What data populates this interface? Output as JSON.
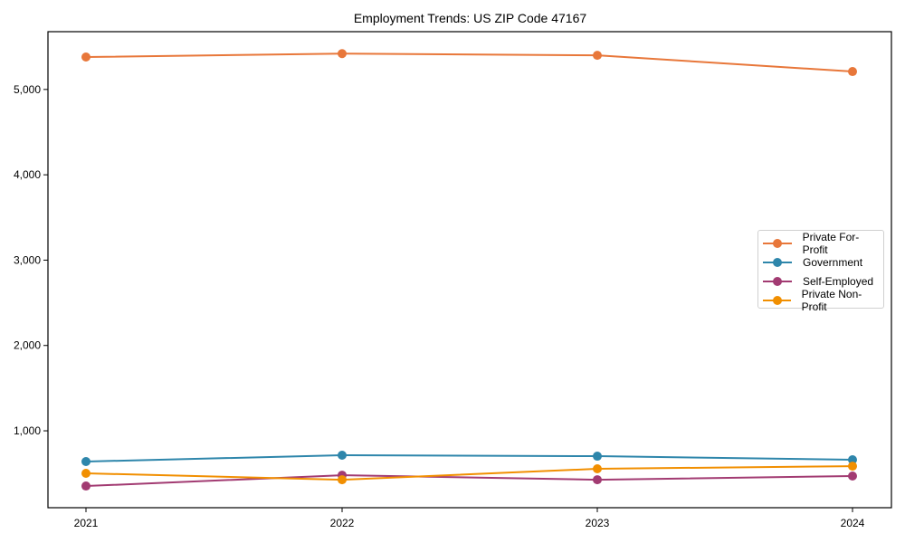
{
  "chart_data": {
    "type": "line",
    "title": "Employment Trends: US ZIP Code 47167",
    "xlabel": "",
    "ylabel": "",
    "categories": [
      "2021",
      "2022",
      "2023",
      "2024"
    ],
    "x": [
      2021,
      2022,
      2023,
      2024
    ],
    "series": [
      {
        "name": "Private For-Profit",
        "color": "#E8773A",
        "values": [
          5380,
          5420,
          5400,
          5210
        ]
      },
      {
        "name": "Government",
        "color": "#2E86AB",
        "values": [
          640,
          714,
          703,
          661
        ]
      },
      {
        "name": "Self-Employed",
        "color": "#A23B72",
        "values": [
          353,
          480,
          427,
          470
        ]
      },
      {
        "name": "Private Non-Profit",
        "color": "#F18F01",
        "values": [
          502,
          427,
          555,
          586
        ]
      }
    ],
    "yticks": [
      1000,
      2000,
      3000,
      4000,
      5000
    ],
    "ytick_labels": [
      "1,000",
      "2,000",
      "3,000",
      "4,000",
      "5,000"
    ],
    "ylim": [
      99,
      5677
    ],
    "grid": false,
    "legend_position": "center right"
  },
  "title": "Employment Trends: US ZIP Code 47167",
  "legend": [
    {
      "label": "Private For-Profit",
      "color": "#E8773A"
    },
    {
      "label": "Government",
      "color": "#2E86AB"
    },
    {
      "label": "Self-Employed",
      "color": "#A23B72"
    },
    {
      "label": "Private Non-Profit",
      "color": "#F18F01"
    }
  ]
}
